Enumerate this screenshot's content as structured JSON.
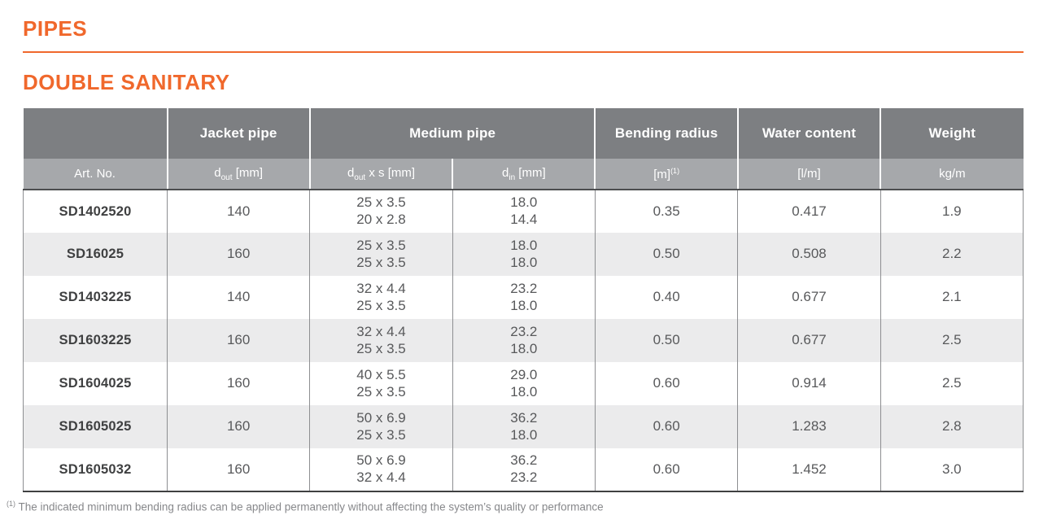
{
  "page": {
    "title": "PIPES",
    "subtitle": "DOUBLE SANITARY",
    "footnote": {
      "marker": "(1)",
      "text": " The indicated minimum bending radius can be applied permanently without affecting the system’s quality or performance"
    }
  },
  "colors": {
    "accent_orange": "#f0682c",
    "header_dark": "#7d7f82",
    "header_light": "#a6a8ab",
    "row_alt": "#ebebec",
    "cell_text": "#58595b",
    "art_no_text": "#3f4041",
    "divider_gray": "#8d8e91",
    "dark_line": "#4c4d4f",
    "footnote_gray": "#87888b"
  },
  "table": {
    "group_headers": {
      "art_no": "",
      "jacket_pipe": "Jacket pipe",
      "medium_pipe": "Medium pipe",
      "bending_radius": "Bending radius",
      "water_content": "Water content",
      "weight": "Weight"
    },
    "sub_headers": {
      "art_no": "Art. No.",
      "jacket_dout": {
        "pre": "d",
        "sub": "out",
        "post": " [mm]"
      },
      "medium_dout_s": {
        "pre": "d",
        "sub": "out",
        "post": " x s [mm]"
      },
      "medium_din": {
        "pre": "d",
        "sub": "in",
        "post": " [mm]"
      },
      "bending_radius": {
        "pre": "[m]",
        "sup": "(1)"
      },
      "water_content": "[l/m]",
      "weight": "kg/m"
    },
    "rows": [
      [
        "SD1402520",
        "140",
        "25 x 3.5\n20 x 2.8",
        "18.0\n14.4",
        "0.35",
        "0.417",
        "1.9"
      ],
      [
        "SD16025",
        "160",
        "25 x 3.5\n25 x 3.5",
        "18.0\n18.0",
        "0.50",
        "0.508",
        "2.2"
      ],
      [
        "SD1403225",
        "140",
        "32 x 4.4\n25 x 3.5",
        "23.2\n18.0",
        "0.40",
        "0.677",
        "2.1"
      ],
      [
        "SD1603225",
        "160",
        "32 x 4.4\n25 x 3.5",
        "23.2\n18.0",
        "0.50",
        "0.677",
        "2.5"
      ],
      [
        "SD1604025",
        "160",
        "40 x 5.5\n25 x 3.5",
        "29.0\n18.0",
        "0.60",
        "0.914",
        "2.5"
      ],
      [
        "SD1605025",
        "160",
        "50 x 6.9\n25 x 3.5",
        "36.2\n18.0",
        "0.60",
        "1.283",
        "2.8"
      ],
      [
        "SD1605032",
        "160",
        "50 x 6.9\n32 x 4.4",
        "36.2\n23.2",
        "0.60",
        "1.452",
        "3.0"
      ]
    ]
  }
}
